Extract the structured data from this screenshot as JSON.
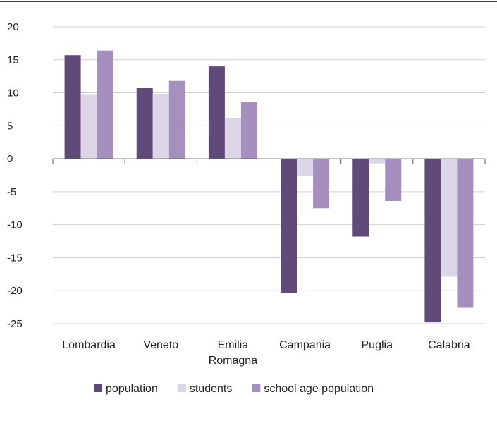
{
  "chart_data": {
    "type": "bar",
    "categories": [
      [
        "Lombardia"
      ],
      [
        "Veneto"
      ],
      [
        "Emilia",
        "Romagna"
      ],
      [
        "Campania"
      ],
      [
        "Puglia"
      ],
      [
        "Calabria"
      ]
    ],
    "series": [
      {
        "name": "population",
        "color": "#5f4a7a",
        "values": [
          15.7,
          10.7,
          14.0,
          -20.3,
          -11.8,
          -24.8
        ]
      },
      {
        "name": "students",
        "color": "#dcd6e6",
        "values": [
          9.7,
          9.8,
          6.1,
          -2.6,
          -0.7,
          -17.9
        ]
      },
      {
        "name": "school age population",
        "color": "#a48fbe",
        "values": [
          16.4,
          11.8,
          8.6,
          -7.5,
          -6.4,
          -22.6
        ]
      }
    ],
    "ylim": [
      -25,
      20
    ],
    "yticks": [
      20,
      15,
      10,
      5,
      0,
      -5,
      -10,
      -15,
      -20,
      -25
    ],
    "grid": true,
    "legend": "bottom",
    "title": "",
    "xlabel": "",
    "ylabel": ""
  }
}
